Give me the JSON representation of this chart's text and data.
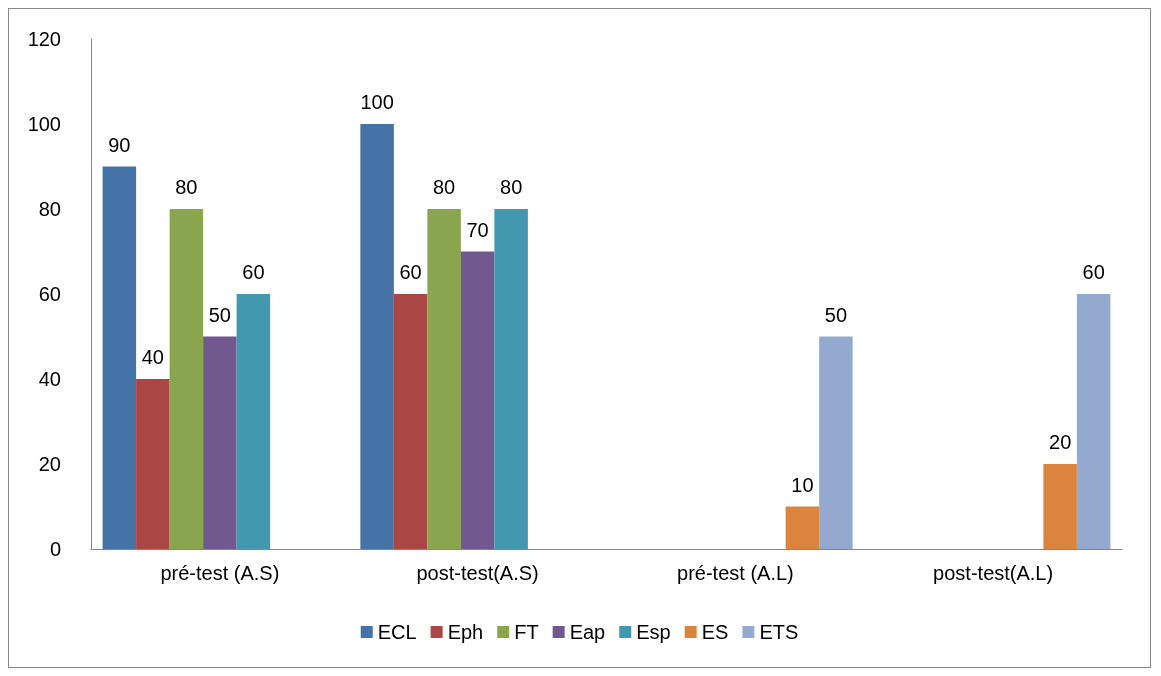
{
  "chart_data": {
    "type": "bar",
    "categories": [
      "pré-test (A.S)",
      "post-test(A.S)",
      "pré-test (A.L)",
      "post-test(A.L)"
    ],
    "series": [
      {
        "name": "ECL",
        "color": "#4572a7",
        "values": [
          90,
          100,
          null,
          null
        ]
      },
      {
        "name": "Eph",
        "color": "#aa4643",
        "values": [
          40,
          60,
          null,
          null
        ]
      },
      {
        "name": "FT",
        "color": "#89a54e",
        "values": [
          80,
          80,
          null,
          null
        ]
      },
      {
        "name": "Eap",
        "color": "#71588f",
        "values": [
          50,
          70,
          null,
          null
        ]
      },
      {
        "name": "Esp",
        "color": "#4198af",
        "values": [
          60,
          80,
          null,
          null
        ]
      },
      {
        "name": "ES",
        "color": "#db843d",
        "values": [
          null,
          null,
          10,
          20
        ]
      },
      {
        "name": "ETS",
        "color": "#93a9cf",
        "values": [
          null,
          null,
          50,
          60
        ]
      }
    ],
    "ylim": [
      0,
      120
    ],
    "yticks": [
      0,
      20,
      40,
      60,
      80,
      100,
      120
    ],
    "grid": false,
    "legend": "bottom",
    "data_labels": true
  }
}
